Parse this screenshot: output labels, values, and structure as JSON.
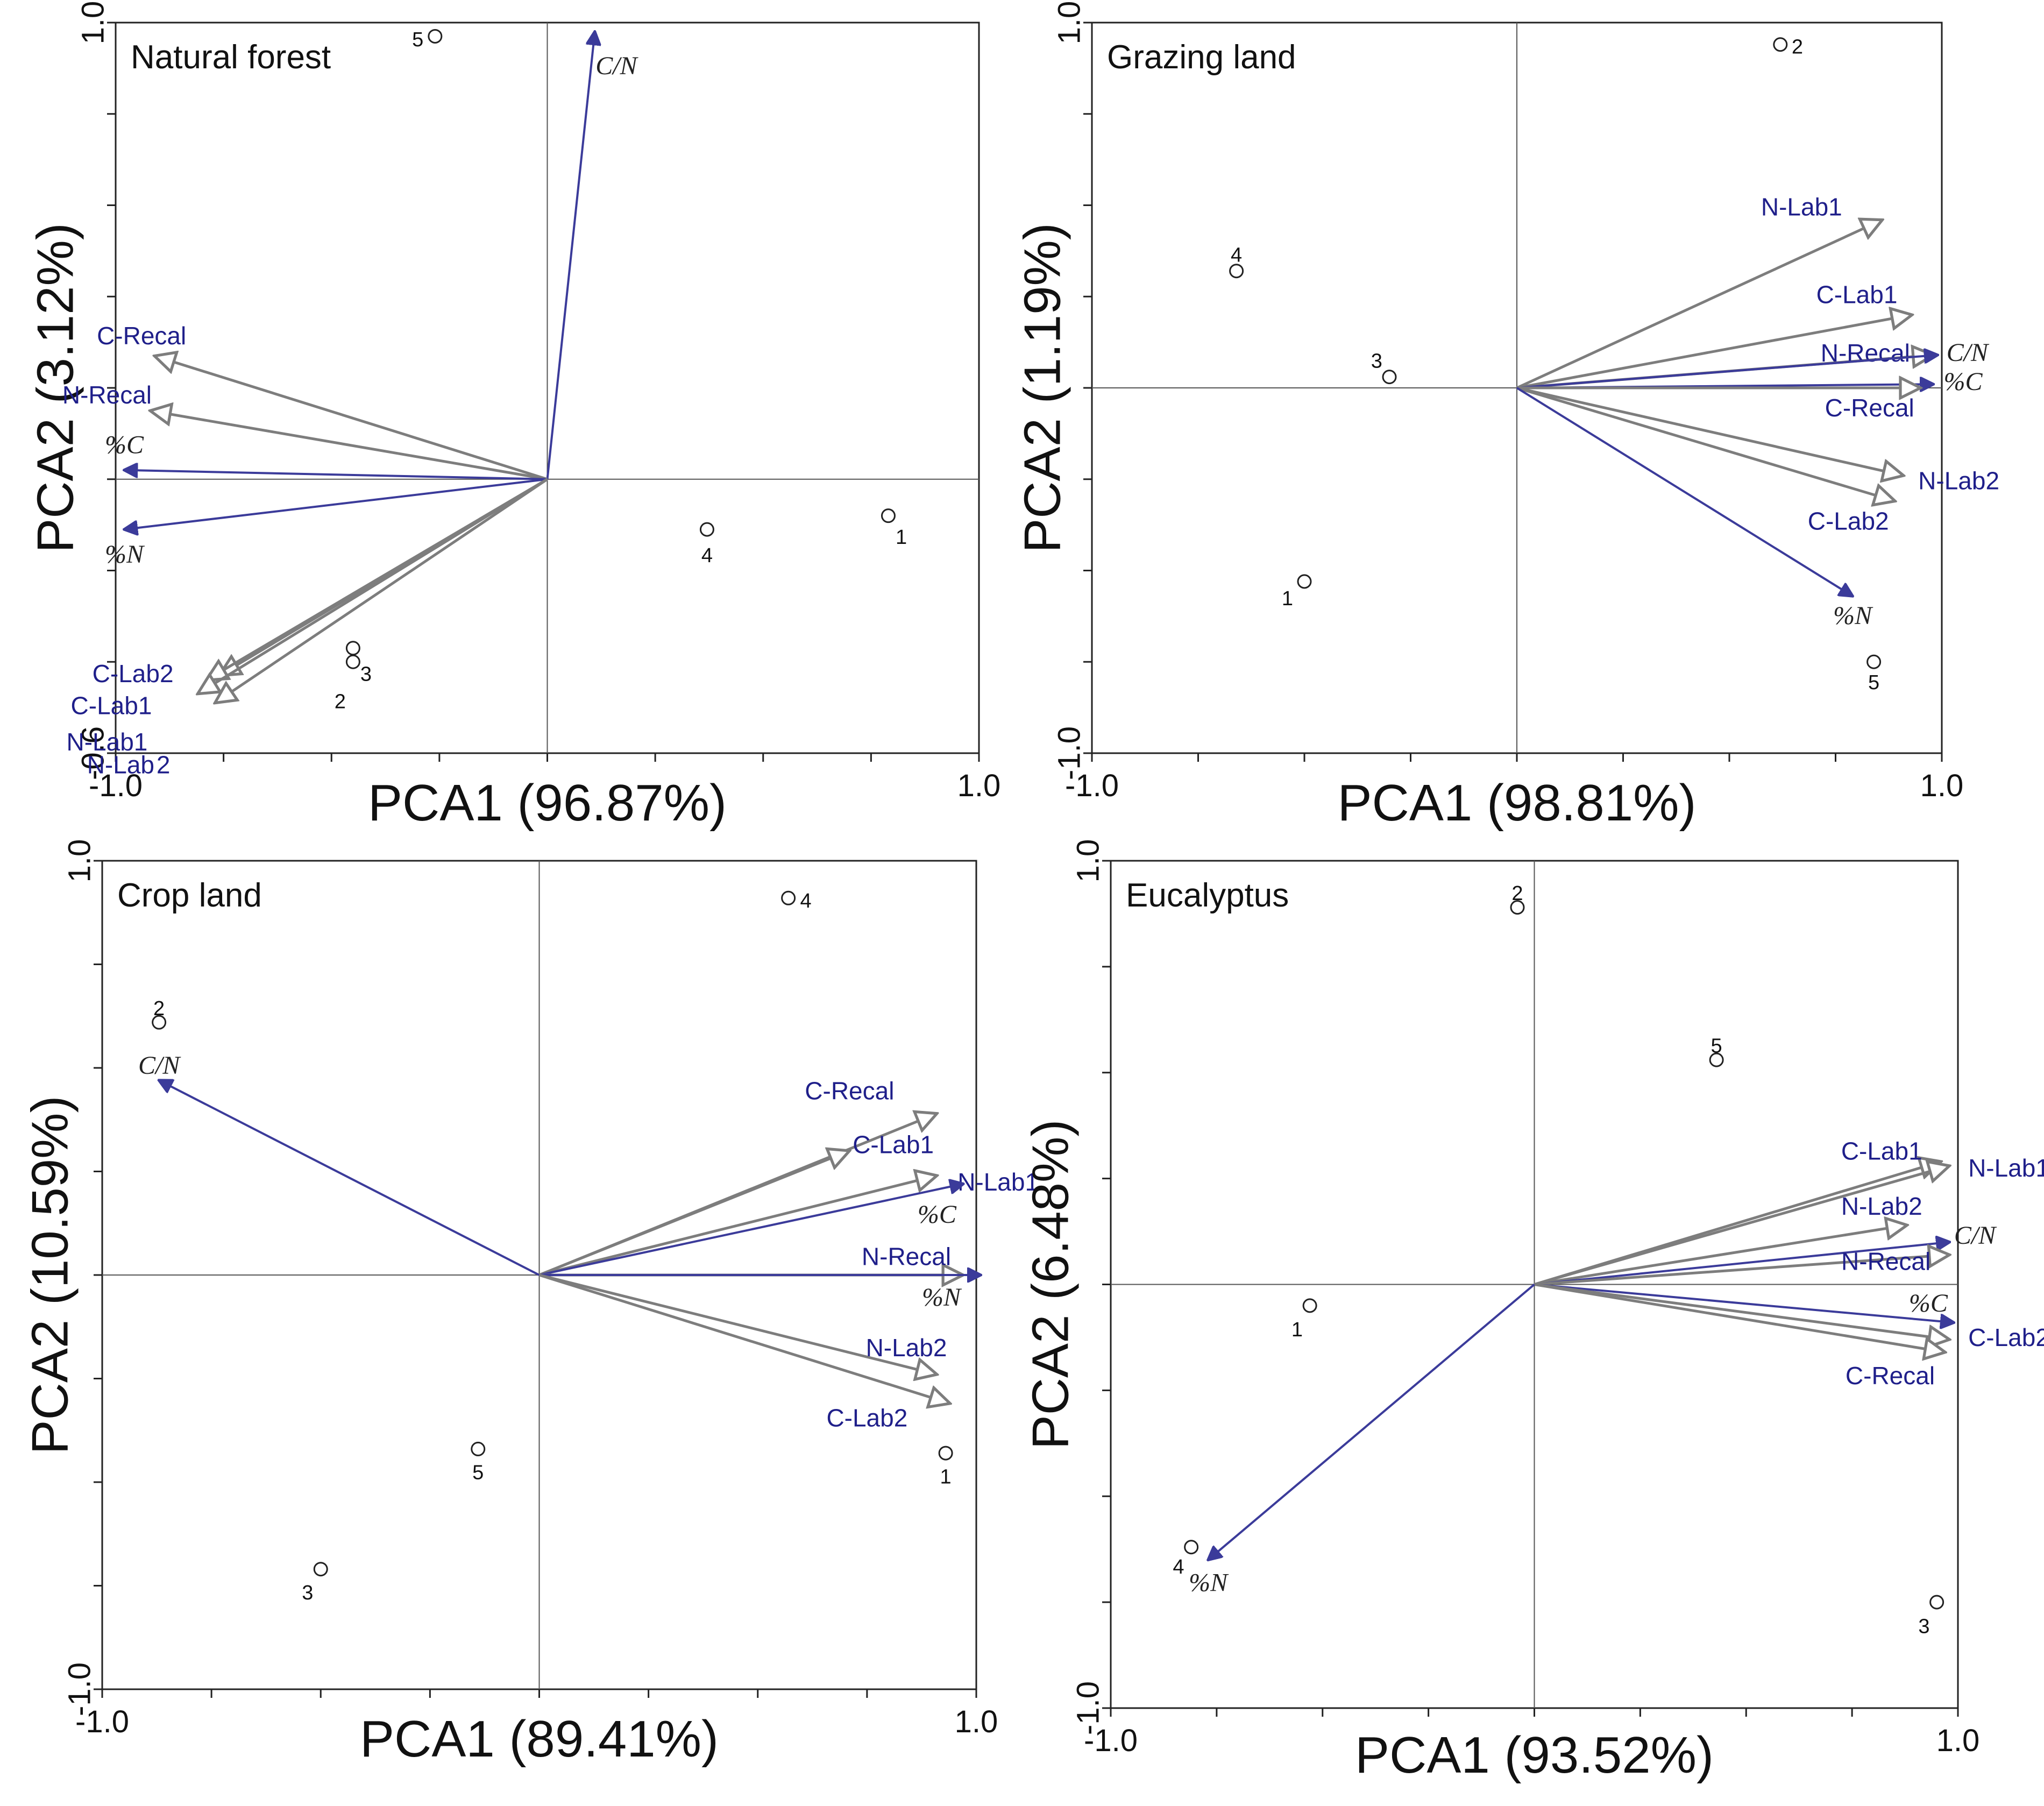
{
  "colors": {
    "blue_arrow": "#3b3b9a",
    "gray_arrow": "#7d7d7d",
    "blue_label": "#1f1f8a",
    "dark_label": "#222222"
  },
  "chart_data": [
    {
      "type": "scatter",
      "subtype": "pca-biplot",
      "title": "Natural forest",
      "xlabel": "PCA1 (96.87%)",
      "ylabel": "PCA2 (3.12%)",
      "xlim": [
        -1.0,
        1.0
      ],
      "ylim": [
        -0.6,
        1.0
      ],
      "xticks": [
        {
          "value": -1.0,
          "label": "-1.0"
        },
        {
          "value": 1.0,
          "label": "1.0"
        }
      ],
      "yticks": [
        {
          "value": -0.6,
          "label": "-0.6"
        },
        {
          "value": 1.0,
          "label": "1.0"
        }
      ],
      "vectors": [
        {
          "name": "C/N",
          "x": 0.11,
          "y": 0.98,
          "kind": "filled",
          "label_dx": 0.05,
          "label_dy": -0.08,
          "italic": true
        },
        {
          "name": "C-Recal",
          "x": -0.91,
          "y": 0.27,
          "kind": "open",
          "label_dx": -0.03,
          "label_dy": 0.04
        },
        {
          "name": "N-Recal",
          "x": -0.92,
          "y": 0.15,
          "kind": "open",
          "label_dx": -0.1,
          "label_dy": 0.03
        },
        {
          "name": "%C",
          "x": -0.98,
          "y": 0.02,
          "kind": "filled",
          "label_dx": 0.0,
          "label_dy": 0.05,
          "italic": true
        },
        {
          "name": "%N",
          "x": -0.98,
          "y": -0.11,
          "kind": "filled",
          "label_dx": 0.0,
          "label_dy": -0.06,
          "italic": true
        },
        {
          "name": "C-Lab2",
          "x": -0.76,
          "y": -0.43,
          "kind": "open",
          "label_dx": -0.2,
          "label_dy": -0.0
        },
        {
          "name": "C-Lab1",
          "x": -0.79,
          "y": -0.44,
          "kind": "open",
          "label_dx": -0.22,
          "label_dy": -0.06
        },
        {
          "name": "N-Lab1",
          "x": -0.81,
          "y": -0.47,
          "kind": "open",
          "label_dx": -0.21,
          "label_dy": -0.11
        },
        {
          "name": "N-Lab 2",
          "x": -0.77,
          "y": -0.49,
          "kind": "open",
          "label_dx": -0.2,
          "label_dy": -0.14
        }
      ],
      "points": [
        {
          "id": "5",
          "x": -0.26,
          "y": 0.97,
          "label_dx": -0.04,
          "label_dy": -0.01
        },
        {
          "id": "4",
          "x": 0.37,
          "y": -0.11,
          "label_dx": 0.0,
          "label_dy": -0.06
        },
        {
          "id": "1",
          "x": 0.79,
          "y": -0.08,
          "label_dx": 0.03,
          "label_dy": -0.05
        },
        {
          "id": "3",
          "x": -0.45,
          "y": -0.4,
          "label_dx": 0.03,
          "label_dy": -0.03
        },
        {
          "id": "2",
          "x": -0.45,
          "y": -0.37,
          "label_dx": -0.03,
          "label_dy": -0.12
        }
      ]
    },
    {
      "type": "scatter",
      "subtype": "pca-biplot",
      "title": "Grazing land",
      "xlabel": "PCA1 (98.81%)",
      "ylabel": "PCA2 (1.19%)",
      "xlim": [
        -1.0,
        1.0
      ],
      "ylim": [
        -1.0,
        1.0
      ],
      "xticks": [
        {
          "value": -1.0,
          "label": "-1.0"
        },
        {
          "value": 1.0,
          "label": "1.0"
        }
      ],
      "yticks": [
        {
          "value": -1.0,
          "label": "-1.0"
        },
        {
          "value": 1.0,
          "label": "1.0"
        }
      ],
      "vectors": [
        {
          "name": "N-Lab1",
          "x": 0.86,
          "y": 0.46,
          "kind": "open",
          "label_dx": -0.19,
          "label_dy": 0.03
        },
        {
          "name": "C-Lab1",
          "x": 0.93,
          "y": 0.2,
          "kind": "open",
          "label_dx": -0.13,
          "label_dy": 0.05
        },
        {
          "name": "N-Recal",
          "x": 0.98,
          "y": 0.09,
          "kind": "open",
          "label_dx": -0.16,
          "label_dy": -0.0
        },
        {
          "name": "C/N",
          "x": 0.99,
          "y": 0.09,
          "kind": "filled",
          "label_dx": 0.07,
          "label_dy": 0.0,
          "italic": true
        },
        {
          "name": "%C",
          "x": 0.98,
          "y": 0.01,
          "kind": "filled",
          "label_dx": 0.07,
          "label_dy": 0.0,
          "italic": true
        },
        {
          "name": "C-Recal",
          "x": 0.95,
          "y": -0.0,
          "kind": "open",
          "label_dx": -0.12,
          "label_dy": -0.06
        },
        {
          "name": "N-Lab2",
          "x": 0.91,
          "y": -0.24,
          "kind": "open",
          "label_dx": 0.13,
          "label_dy": -0.02
        },
        {
          "name": "C-Lab2",
          "x": 0.89,
          "y": -0.31,
          "kind": "open",
          "label_dx": -0.11,
          "label_dy": -0.06
        },
        {
          "name": "%N",
          "x": 0.79,
          "y": -0.57,
          "kind": "filled",
          "label_dx": 0.0,
          "label_dy": -0.06,
          "italic": true
        }
      ],
      "points": [
        {
          "id": "2",
          "x": 0.62,
          "y": 0.94,
          "label_dx": 0.04,
          "label_dy": -0.01
        },
        {
          "id": "4",
          "x": -0.66,
          "y": 0.32,
          "label_dx": 0.0,
          "label_dy": 0.04
        },
        {
          "id": "3",
          "x": -0.3,
          "y": 0.03,
          "label_dx": -0.03,
          "label_dy": 0.04
        },
        {
          "id": "1",
          "x": -0.5,
          "y": -0.53,
          "label_dx": -0.04,
          "label_dy": -0.05
        },
        {
          "id": "5",
          "x": 0.84,
          "y": -0.75,
          "label_dx": 0.0,
          "label_dy": -0.06
        }
      ]
    },
    {
      "type": "scatter",
      "subtype": "pca-biplot",
      "title": "Crop land",
      "xlabel": "PCA1 (89.41%)",
      "ylabel": "PCA2 (10.59%)",
      "xlim": [
        -1.0,
        1.0
      ],
      "ylim": [
        -1.0,
        1.0
      ],
      "xticks": [
        {
          "value": -1.0,
          "label": "-1.0"
        },
        {
          "value": 1.0,
          "label": "1.0"
        }
      ],
      "yticks": [
        {
          "value": -1.0,
          "label": "-1.0"
        },
        {
          "value": 1.0,
          "label": "1.0"
        }
      ],
      "vectors": [
        {
          "name": "C/N",
          "x": -0.87,
          "y": 0.47,
          "kind": "filled",
          "label_dx": 0.0,
          "label_dy": 0.03,
          "italic": true
        },
        {
          "name": "C-Recal",
          "x": 0.91,
          "y": 0.39,
          "kind": "open",
          "label_dx": -0.2,
          "label_dy": 0.05
        },
        {
          "name": "C-Lab1",
          "x": 0.71,
          "y": 0.3,
          "kind": "open",
          "label_dx": 0.1,
          "label_dy": 0.01
        },
        {
          "name": "N-Lab1",
          "x": 0.91,
          "y": 0.24,
          "kind": "open",
          "label_dx": 0.14,
          "label_dy": -0.02
        },
        {
          "name": "%C",
          "x": 0.97,
          "y": 0.22,
          "kind": "filled",
          "label_dx": -0.06,
          "label_dy": -0.08,
          "italic": true
        },
        {
          "name": "N-Recal",
          "x": 0.97,
          "y": 0.0,
          "kind": "open",
          "label_dx": -0.13,
          "label_dy": 0.04
        },
        {
          "name": "%N",
          "x": 1.01,
          "y": 0.0,
          "kind": "filled",
          "label_dx": -0.09,
          "label_dy": -0.06,
          "italic": true
        },
        {
          "name": "N-Lab2",
          "x": 0.91,
          "y": -0.24,
          "kind": "open",
          "label_dx": -0.07,
          "label_dy": 0.06
        },
        {
          "name": "C-Lab2",
          "x": 0.94,
          "y": -0.31,
          "kind": "open",
          "label_dx": -0.19,
          "label_dy": -0.04
        }
      ],
      "points": [
        {
          "id": "4",
          "x": 0.57,
          "y": 0.91,
          "label_dx": 0.04,
          "label_dy": -0.01
        },
        {
          "id": "2",
          "x": -0.87,
          "y": 0.61,
          "label_dx": 0.0,
          "label_dy": 0.03
        },
        {
          "id": "5",
          "x": -0.14,
          "y": -0.42,
          "label_dx": 0.0,
          "label_dy": -0.06
        },
        {
          "id": "1",
          "x": 0.93,
          "y": -0.43,
          "label_dx": 0.0,
          "label_dy": -0.06
        },
        {
          "id": "3",
          "x": -0.5,
          "y": -0.71,
          "label_dx": -0.03,
          "label_dy": -0.06
        }
      ]
    },
    {
      "type": "scatter",
      "subtype": "pca-biplot",
      "title": "Eucalyptus",
      "xlabel": "PCA1 (93.52%)",
      "ylabel": "PCA2 (6.48%)",
      "xlim": [
        -1.0,
        1.0
      ],
      "ylim": [
        -1.0,
        1.0
      ],
      "xticks": [
        {
          "value": -1.0,
          "label": "-1.0"
        },
        {
          "value": 1.0,
          "label": "1.0"
        }
      ],
      "yticks": [
        {
          "value": -1.0,
          "label": "-1.0"
        },
        {
          "value": 1.0,
          "label": "1.0"
        }
      ],
      "vectors": [
        {
          "name": "C-Lab1",
          "x": 0.96,
          "y": 0.29,
          "kind": "open",
          "label_dx": -0.14,
          "label_dy": 0.02
        },
        {
          "name": "N-Lab1",
          "x": 0.98,
          "y": 0.28,
          "kind": "open",
          "label_dx": 0.14,
          "label_dy": -0.01
        },
        {
          "name": "N-Lab2",
          "x": 0.88,
          "y": 0.14,
          "kind": "open",
          "label_dx": -0.06,
          "label_dy": 0.04
        },
        {
          "name": "C/N",
          "x": 0.98,
          "y": 0.1,
          "kind": "filled",
          "label_dx": 0.06,
          "label_dy": 0.01,
          "italic": true
        },
        {
          "name": "N-Recal",
          "x": 0.98,
          "y": 0.07,
          "kind": "open",
          "label_dx": -0.15,
          "label_dy": -0.02
        },
        {
          "name": "%C",
          "x": 0.99,
          "y": -0.09,
          "kind": "filled",
          "label_dx": -0.06,
          "label_dy": 0.04,
          "italic": true
        },
        {
          "name": "C-Lab2",
          "x": 0.98,
          "y": -0.13,
          "kind": "open",
          "label_dx": 0.14,
          "label_dy": 0.0
        },
        {
          "name": "C-Recal",
          "x": 0.97,
          "y": -0.16,
          "kind": "open",
          "label_dx": -0.13,
          "label_dy": -0.06
        },
        {
          "name": "%N",
          "x": -0.77,
          "y": -0.65,
          "kind": "filled",
          "label_dx": 0.0,
          "label_dy": -0.06,
          "italic": true
        }
      ],
      "points": [
        {
          "id": "2",
          "x": -0.04,
          "y": 0.89,
          "label_dx": 0.0,
          "label_dy": 0.03
        },
        {
          "id": "5",
          "x": 0.43,
          "y": 0.53,
          "label_dx": 0.0,
          "label_dy": 0.03
        },
        {
          "id": "1",
          "x": -0.53,
          "y": -0.05,
          "label_dx": -0.03,
          "label_dy": -0.06
        },
        {
          "id": "4",
          "x": -0.81,
          "y": -0.62,
          "label_dx": -0.03,
          "label_dy": -0.05
        },
        {
          "id": "3",
          "x": 0.95,
          "y": -0.75,
          "label_dx": -0.03,
          "label_dy": -0.06
        }
      ]
    }
  ]
}
